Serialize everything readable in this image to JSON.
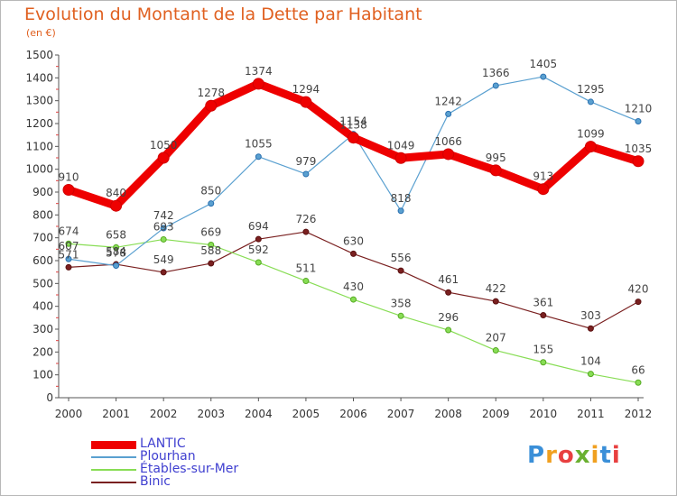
{
  "title": "Evolution du Montant de la Dette par Habitant",
  "unit": "(en €)",
  "logo": {
    "letters": [
      "P",
      "r",
      "o",
      "x",
      "i",
      "t",
      "i"
    ],
    "colors": [
      "#3a8fd8",
      "#f0a020",
      "#e84040",
      "#6ab030",
      "#f0a020",
      "#3a8fd8",
      "#e84040"
    ]
  },
  "chart_data": {
    "type": "line",
    "x": [
      "2000",
      "2001",
      "2002",
      "2003",
      "2004",
      "2005",
      "2006",
      "2007",
      "2008",
      "2009",
      "2010",
      "2011",
      "2012"
    ],
    "ylim": [
      0,
      1500
    ],
    "yticks": [
      0,
      100,
      200,
      300,
      400,
      500,
      600,
      700,
      800,
      900,
      1000,
      1100,
      1200,
      1300,
      1400,
      1500
    ],
    "grid": false,
    "legend_position": "bottom-left",
    "series": [
      {
        "name": "LANTIC",
        "color": "#ee0000",
        "values": [
          910,
          840,
          1050,
          1278,
          1374,
          1294,
          1138,
          1049,
          1066,
          995,
          913,
          1099,
          1035
        ]
      },
      {
        "name": "Plourhan",
        "color": "#5aa0d0",
        "values": [
          607,
          578,
          742,
          850,
          1055,
          979,
          1154,
          818,
          1242,
          1366,
          1405,
          1295,
          1210
        ]
      },
      {
        "name": "Étables-sur-Mer",
        "color": "#88dd55",
        "values": [
          674,
          658,
          693,
          669,
          592,
          511,
          430,
          358,
          296,
          207,
          155,
          104,
          66
        ]
      },
      {
        "name": "Binic",
        "color": "#7a2020",
        "values": [
          571,
          584,
          549,
          588,
          694,
          726,
          630,
          556,
          461,
          422,
          361,
          303,
          420
        ]
      }
    ]
  }
}
